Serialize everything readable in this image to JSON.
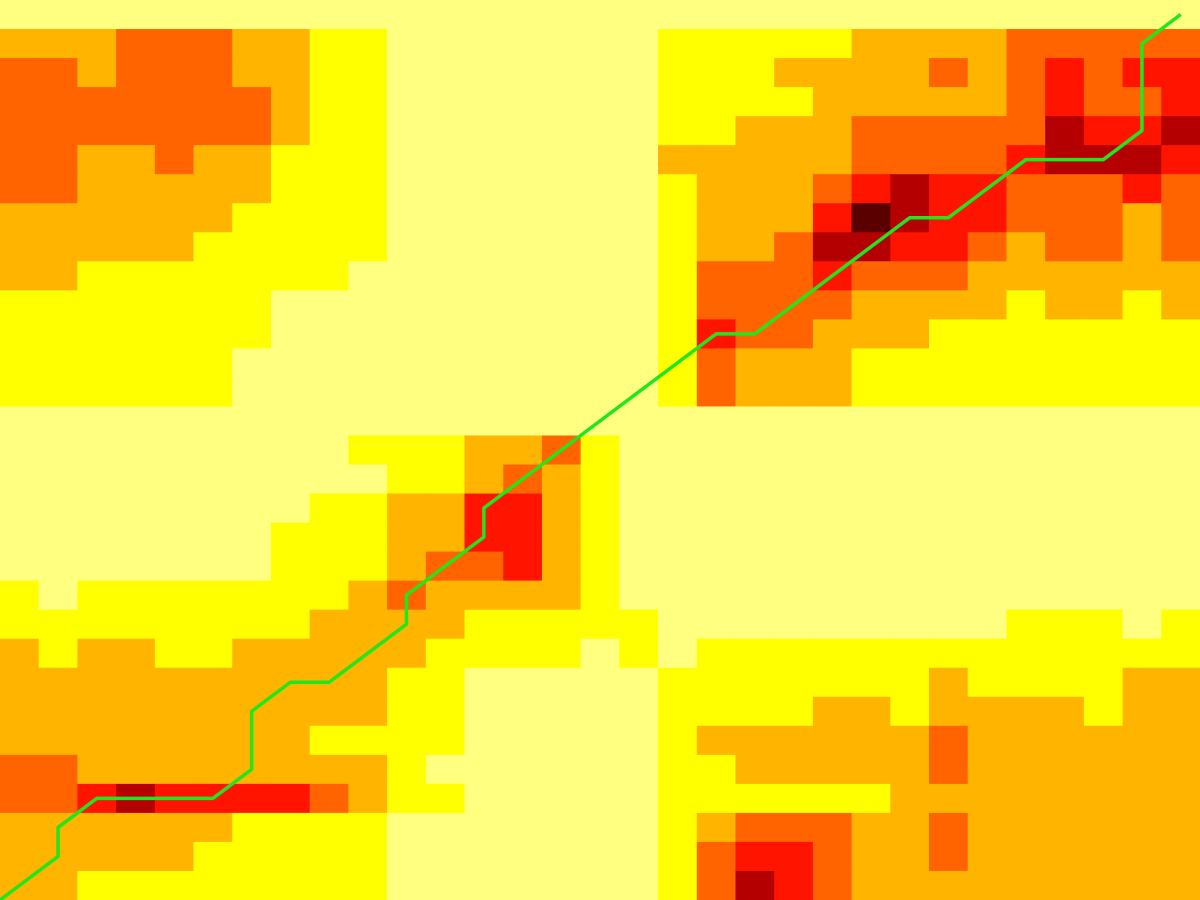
{
  "chart_data": {
    "type": "heatmap",
    "colormap": "hot_r",
    "palette": [
      "#ffff80",
      "#ffff00",
      "#ffb400",
      "#ff6400",
      "#ff1400",
      "#b40000",
      "#5a0000",
      "#000000"
    ],
    "path_color": "#22e51b",
    "n_rows": 31,
    "n_cols": 31,
    "grid": [
      [
        0,
        0,
        0,
        0,
        0,
        0,
        0,
        0,
        0,
        0,
        0,
        0,
        0,
        0,
        0,
        0,
        0,
        0,
        0,
        0,
        0,
        0,
        0,
        0,
        0,
        0,
        0,
        0,
        0,
        0,
        0
      ],
      [
        2,
        2,
        2,
        3,
        3,
        3,
        2,
        2,
        1,
        1,
        0,
        0,
        0,
        0,
        0,
        0,
        0,
        1,
        1,
        1,
        1,
        1,
        2,
        2,
        2,
        2,
        3,
        3,
        3,
        3,
        3
      ],
      [
        3,
        3,
        2,
        3,
        3,
        3,
        2,
        2,
        1,
        1,
        0,
        0,
        0,
        0,
        0,
        0,
        0,
        1,
        1,
        1,
        2,
        2,
        2,
        2,
        3,
        2,
        3,
        4,
        3,
        4,
        4
      ],
      [
        3,
        3,
        3,
        3,
        3,
        3,
        3,
        2,
        1,
        1,
        0,
        0,
        0,
        0,
        0,
        0,
        0,
        1,
        1,
        1,
        1,
        2,
        2,
        2,
        2,
        2,
        3,
        4,
        3,
        3,
        4
      ],
      [
        3,
        3,
        3,
        3,
        3,
        3,
        3,
        2,
        1,
        1,
        0,
        0,
        0,
        0,
        0,
        0,
        0,
        1,
        1,
        2,
        2,
        2,
        3,
        3,
        3,
        3,
        3,
        5,
        4,
        4,
        5
      ],
      [
        3,
        3,
        2,
        2,
        3,
        2,
        2,
        1,
        1,
        1,
        0,
        0,
        0,
        0,
        0,
        0,
        0,
        2,
        2,
        2,
        2,
        2,
        3,
        3,
        3,
        3,
        4,
        5,
        5,
        5,
        4
      ],
      [
        3,
        3,
        2,
        2,
        2,
        2,
        2,
        1,
        1,
        1,
        0,
        0,
        0,
        0,
        0,
        0,
        0,
        1,
        2,
        2,
        2,
        3,
        4,
        5,
        4,
        4,
        3,
        3,
        3,
        4,
        3
      ],
      [
        2,
        2,
        2,
        2,
        2,
        2,
        1,
        1,
        1,
        1,
        0,
        0,
        0,
        0,
        0,
        0,
        0,
        1,
        2,
        2,
        2,
        4,
        6,
        5,
        4,
        4,
        3,
        3,
        3,
        2,
        3
      ],
      [
        2,
        2,
        2,
        2,
        2,
        1,
        1,
        1,
        1,
        1,
        0,
        0,
        0,
        0,
        0,
        0,
        0,
        1,
        2,
        2,
        3,
        5,
        5,
        4,
        4,
        3,
        2,
        3,
        3,
        2,
        3
      ],
      [
        2,
        2,
        1,
        1,
        1,
        1,
        1,
        1,
        1,
        0,
        0,
        0,
        0,
        0,
        0,
        0,
        0,
        1,
        3,
        3,
        3,
        4,
        3,
        3,
        3,
        2,
        2,
        2,
        2,
        2,
        2
      ],
      [
        1,
        1,
        1,
        1,
        1,
        1,
        1,
        0,
        0,
        0,
        0,
        0,
        0,
        0,
        0,
        0,
        0,
        1,
        3,
        3,
        3,
        3,
        2,
        2,
        2,
        2,
        1,
        2,
        2,
        1,
        2
      ],
      [
        1,
        1,
        1,
        1,
        1,
        1,
        1,
        0,
        0,
        0,
        0,
        0,
        0,
        0,
        0,
        0,
        0,
        1,
        4,
        3,
        3,
        2,
        2,
        2,
        1,
        1,
        1,
        1,
        1,
        1,
        1
      ],
      [
        1,
        1,
        1,
        1,
        1,
        1,
        0,
        0,
        0,
        0,
        0,
        0,
        0,
        0,
        0,
        0,
        0,
        1,
        3,
        2,
        2,
        2,
        1,
        1,
        1,
        1,
        1,
        1,
        1,
        1,
        1
      ],
      [
        1,
        1,
        1,
        1,
        1,
        1,
        0,
        0,
        0,
        0,
        0,
        0,
        0,
        0,
        0,
        0,
        0,
        1,
        3,
        2,
        2,
        2,
        1,
        1,
        1,
        1,
        1,
        1,
        1,
        1,
        1
      ],
      [
        0,
        0,
        0,
        0,
        0,
        0,
        0,
        0,
        0,
        0,
        0,
        0,
        0,
        0,
        0,
        0,
        0,
        0,
        0,
        0,
        0,
        0,
        0,
        0,
        0,
        0,
        0,
        0,
        0,
        0,
        0
      ],
      [
        0,
        0,
        0,
        0,
        0,
        0,
        0,
        0,
        0,
        1,
        1,
        1,
        2,
        2,
        3,
        1,
        0,
        0,
        0,
        0,
        0,
        0,
        0,
        0,
        0,
        0,
        0,
        0,
        0,
        0,
        0
      ],
      [
        0,
        0,
        0,
        0,
        0,
        0,
        0,
        0,
        0,
        0,
        1,
        1,
        2,
        3,
        2,
        1,
        0,
        0,
        0,
        0,
        0,
        0,
        0,
        0,
        0,
        0,
        0,
        0,
        0,
        0,
        0
      ],
      [
        0,
        0,
        0,
        0,
        0,
        0,
        0,
        0,
        1,
        1,
        2,
        2,
        4,
        4,
        2,
        1,
        0,
        0,
        0,
        0,
        0,
        0,
        0,
        0,
        0,
        0,
        0,
        0,
        0,
        0,
        0
      ],
      [
        0,
        0,
        0,
        0,
        0,
        0,
        0,
        1,
        1,
        1,
        2,
        2,
        4,
        4,
        2,
        1,
        0,
        0,
        0,
        0,
        0,
        0,
        0,
        0,
        0,
        0,
        0,
        0,
        0,
        0,
        0
      ],
      [
        0,
        0,
        0,
        0,
        0,
        0,
        0,
        1,
        1,
        1,
        2,
        3,
        3,
        4,
        2,
        1,
        0,
        0,
        0,
        0,
        0,
        0,
        0,
        0,
        0,
        0,
        0,
        0,
        0,
        0,
        0
      ],
      [
        1,
        0,
        1,
        1,
        1,
        1,
        1,
        1,
        1,
        2,
        3,
        2,
        2,
        2,
        2,
        1,
        0,
        0,
        0,
        0,
        0,
        0,
        0,
        0,
        0,
        0,
        0,
        0,
        0,
        0,
        0
      ],
      [
        1,
        1,
        1,
        1,
        1,
        1,
        1,
        1,
        2,
        2,
        2,
        2,
        1,
        1,
        1,
        1,
        1,
        0,
        0,
        0,
        0,
        0,
        0,
        0,
        0,
        0,
        1,
        1,
        1,
        0,
        1
      ],
      [
        2,
        1,
        2,
        2,
        1,
        1,
        2,
        2,
        2,
        2,
        2,
        1,
        1,
        1,
        1,
        0,
        1,
        0,
        1,
        1,
        1,
        1,
        1,
        1,
        1,
        1,
        1,
        1,
        1,
        1,
        1
      ],
      [
        2,
        2,
        2,
        2,
        2,
        2,
        2,
        2,
        2,
        2,
        1,
        1,
        0,
        0,
        0,
        0,
        0,
        1,
        1,
        1,
        1,
        1,
        1,
        1,
        2,
        1,
        1,
        1,
        1,
        2,
        2
      ],
      [
        2,
        2,
        2,
        2,
        2,
        2,
        2,
        2,
        2,
        2,
        1,
        1,
        0,
        0,
        0,
        0,
        0,
        1,
        1,
        1,
        1,
        2,
        2,
        1,
        2,
        2,
        2,
        2,
        1,
        2,
        2
      ],
      [
        2,
        2,
        2,
        2,
        2,
        2,
        2,
        2,
        1,
        1,
        1,
        1,
        0,
        0,
        0,
        0,
        0,
        1,
        2,
        2,
        2,
        2,
        2,
        2,
        3,
        2,
        2,
        2,
        2,
        2,
        2
      ],
      [
        3,
        3,
        2,
        2,
        2,
        2,
        2,
        2,
        2,
        2,
        1,
        0,
        0,
        0,
        0,
        0,
        0,
        1,
        1,
        2,
        2,
        2,
        2,
        2,
        3,
        2,
        2,
        2,
        2,
        2,
        2
      ],
      [
        3,
        3,
        4,
        5,
        4,
        4,
        4,
        4,
        3,
        2,
        1,
        1,
        0,
        0,
        0,
        0,
        0,
        1,
        1,
        1,
        1,
        1,
        1,
        2,
        2,
        2,
        2,
        2,
        2,
        2,
        2
      ],
      [
        2,
        2,
        2,
        2,
        2,
        2,
        1,
        1,
        1,
        1,
        0,
        0,
        0,
        0,
        0,
        0,
        0,
        1,
        2,
        3,
        3,
        3,
        2,
        2,
        3,
        2,
        2,
        2,
        2,
        2,
        2
      ],
      [
        2,
        2,
        2,
        2,
        2,
        1,
        1,
        1,
        1,
        1,
        0,
        0,
        0,
        0,
        0,
        0,
        0,
        1,
        3,
        4,
        4,
        3,
        2,
        2,
        3,
        2,
        2,
        2,
        2,
        2,
        2
      ],
      [
        2,
        2,
        1,
        1,
        1,
        1,
        1,
        1,
        1,
        1,
        0,
        0,
        0,
        0,
        0,
        0,
        0,
        1,
        3,
        5,
        4,
        3,
        2,
        2,
        2,
        2,
        2,
        2,
        2,
        2,
        2
      ]
    ],
    "path": [
      [
        0.0,
        31.0
      ],
      [
        1.5,
        29.5
      ],
      [
        1.5,
        28.5
      ],
      [
        2.5,
        27.5
      ],
      [
        5.5,
        27.5
      ],
      [
        6.5,
        26.5
      ],
      [
        6.5,
        24.5
      ],
      [
        7.5,
        23.5
      ],
      [
        8.5,
        23.5
      ],
      [
        10.5,
        21.5
      ],
      [
        10.5,
        20.5
      ],
      [
        12.5,
        18.5
      ],
      [
        12.5,
        17.5
      ],
      [
        15.0,
        15.0
      ],
      [
        18.5,
        11.5
      ],
      [
        19.5,
        11.5
      ],
      [
        23.5,
        7.5
      ],
      [
        24.5,
        7.5
      ],
      [
        26.5,
        5.5
      ],
      [
        28.5,
        5.5
      ],
      [
        29.5,
        4.5
      ],
      [
        29.5,
        1.5
      ],
      [
        30.5,
        0.5
      ]
    ]
  }
}
